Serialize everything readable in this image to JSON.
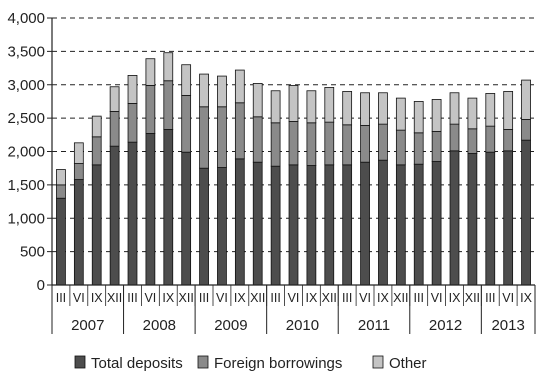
{
  "chart_data": {
    "type": "bar",
    "stacked": true,
    "grid": "horizontal-dashed",
    "legend_position": "bottom",
    "ylim": [
      0,
      4000
    ],
    "y_ticks": [
      "0",
      "500",
      "1,000",
      "1,500",
      "2,000",
      "2,500",
      "3,000",
      "3,500",
      "4,000"
    ],
    "categories": [
      "III",
      "VI",
      "IX",
      "XII",
      "III",
      "VI",
      "IX",
      "XII",
      "III",
      "VI",
      "IX",
      "XII",
      "III",
      "VI",
      "IX",
      "XII",
      "III",
      "VI",
      "IX",
      "XII",
      "III",
      "VI",
      "IX",
      "XII",
      "III",
      "VI",
      "IX"
    ],
    "years": [
      {
        "label": "2007",
        "count": 4
      },
      {
        "label": "2008",
        "count": 4
      },
      {
        "label": "2009",
        "count": 4
      },
      {
        "label": "2010",
        "count": 4
      },
      {
        "label": "2011",
        "count": 4
      },
      {
        "label": "2012",
        "count": 4
      },
      {
        "label": "2013",
        "count": 3
      }
    ],
    "series": [
      {
        "name": "Total deposits",
        "color": "#4d4d4d",
        "values": [
          1300,
          1580,
          1800,
          2080,
          2140,
          2270,
          2330,
          1990,
          1750,
          1760,
          1890,
          1840,
          1780,
          1800,
          1790,
          1800,
          1800,
          1840,
          1870,
          1800,
          1810,
          1850,
          2010,
          1970,
          1990,
          2010,
          2170
        ]
      },
      {
        "name": "Foreign borrowings",
        "color": "#8a8a8a",
        "values": [
          200,
          240,
          420,
          520,
          580,
          720,
          730,
          850,
          920,
          910,
          840,
          680,
          650,
          650,
          640,
          640,
          600,
          550,
          540,
          520,
          470,
          450,
          400,
          370,
          390,
          320,
          310
        ]
      },
      {
        "name": "Other",
        "color": "#c4c4c4",
        "values": [
          230,
          310,
          310,
          370,
          420,
          400,
          420,
          460,
          490,
          460,
          490,
          500,
          480,
          540,
          480,
          520,
          500,
          490,
          470,
          480,
          470,
          480,
          470,
          460,
          490,
          570,
          590
        ]
      }
    ]
  }
}
